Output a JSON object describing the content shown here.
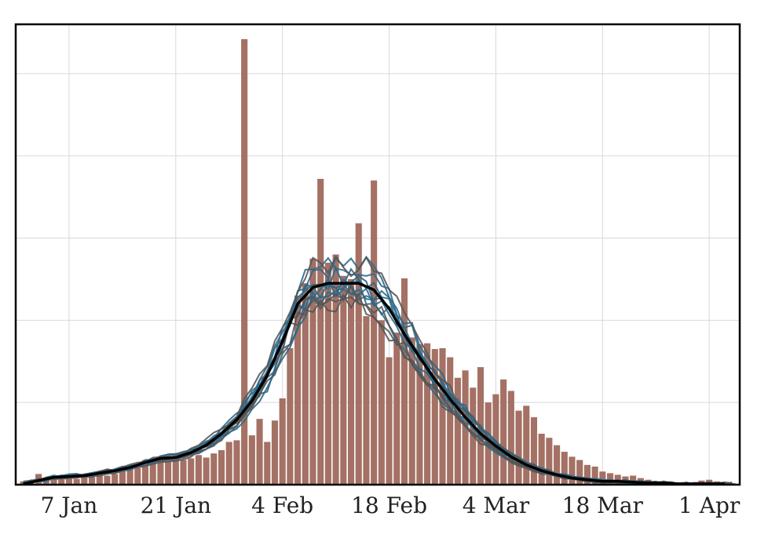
{
  "chart_data": {
    "type": "bar",
    "title": "",
    "xlabel": "",
    "ylabel": "",
    "x_ticks": [
      {
        "label": "7 Jan",
        "day": 7
      },
      {
        "label": "21 Jan",
        "day": 21
      },
      {
        "label": "4 Feb",
        "day": 35
      },
      {
        "label": "18 Feb",
        "day": 49
      },
      {
        "label": "4 Mar",
        "day": 63
      },
      {
        "label": "18 Mar",
        "day": 77
      },
      {
        "label": "1 Apr",
        "day": 91
      }
    ],
    "xlim": [
      0,
      95
    ],
    "ylim": [
      0,
      5.6
    ],
    "y_gridlines": [
      1,
      2,
      3,
      4,
      5
    ],
    "grid": true,
    "series": [
      {
        "name": "",
        "kind": "bar",
        "color": "#a47164",
        "x": [
          1,
          2,
          3,
          4,
          5,
          6,
          7,
          8,
          9,
          10,
          11,
          12,
          13,
          14,
          15,
          16,
          17,
          18,
          19,
          20,
          21,
          22,
          23,
          24,
          25,
          26,
          27,
          28,
          29,
          30,
          31,
          32,
          33,
          34,
          35,
          36,
          37,
          38,
          39,
          40,
          41,
          42,
          43,
          44,
          45,
          46,
          47,
          48,
          49,
          50,
          51,
          52,
          53,
          54,
          55,
          56,
          57,
          58,
          59,
          60,
          61,
          62,
          63,
          64,
          65,
          66,
          67,
          68,
          69,
          70,
          71,
          72,
          73,
          74,
          75,
          76,
          77,
          78,
          79,
          80,
          81,
          82,
          83,
          84,
          85,
          86,
          87,
          88,
          89,
          90,
          91,
          92,
          93,
          94
        ],
        "values": [
          0.04,
          0.05,
          0.13,
          0.07,
          0.08,
          0.06,
          0.09,
          0.07,
          0.1,
          0.12,
          0.15,
          0.11,
          0.13,
          0.17,
          0.22,
          0.2,
          0.3,
          0.27,
          0.34,
          0.29,
          0.35,
          0.3,
          0.32,
          0.36,
          0.33,
          0.38,
          0.42,
          0.52,
          0.54,
          0.69,
          0.6,
          0.8,
          0.52,
          0.78,
          1.05,
          1.66,
          2.3,
          2.45,
          2.75,
          2.79,
          2.7,
          2.8,
          2.54,
          2.5,
          2.3,
          1.89,
          2.41,
          2.3,
          1.87,
          2.2,
          2.51,
          1.79,
          1.71,
          1.73,
          1.48,
          1.66,
          1.55,
          1.3,
          1.39,
          1.14,
          1.43,
          1.2,
          1.1,
          1.28,
          1.14,
          0.9,
          0.96,
          0.82,
          0.62,
          0.57,
          0.48,
          0.4,
          0.34,
          0.3,
          0.24,
          0.22,
          0.16,
          0.14,
          0.12,
          0.1,
          0.11,
          0.08,
          0.06,
          0.04,
          0.03,
          0.02,
          0.01,
          0.01,
          0.02,
          0.05,
          0.06,
          0.04,
          0.03,
          0.02
        ],
        "overrides": [
          [
            30,
            5.42
          ],
          [
            40,
            3.72
          ],
          [
            45,
            3.18
          ],
          [
            46,
            2.05
          ],
          [
            47,
            3.7
          ],
          [
            48,
            2.0
          ],
          [
            49,
            1.55
          ],
          [
            50,
            1.85
          ],
          [
            54,
            1.72
          ],
          [
            55,
            1.65
          ],
          [
            60,
            1.18
          ],
          [
            62,
            1.0
          ]
        ]
      },
      {
        "name": "",
        "kind": "line",
        "color": "#000000",
        "x": [
          1,
          3,
          5,
          7,
          9,
          11,
          13,
          15,
          17,
          19,
          21,
          23,
          25,
          27,
          29,
          31,
          33,
          35,
          37,
          39,
          41,
          43,
          45,
          47,
          49,
          51,
          53,
          55,
          57,
          59,
          61,
          63,
          65,
          67,
          69,
          71,
          73,
          75,
          77,
          79,
          81,
          83,
          85,
          87,
          89,
          91,
          93
        ],
        "values": [
          0.01,
          0.05,
          0.09,
          0.1,
          0.11,
          0.14,
          0.17,
          0.21,
          0.27,
          0.32,
          0.33,
          0.39,
          0.48,
          0.62,
          0.79,
          1.02,
          1.33,
          1.74,
          2.2,
          2.4,
          2.45,
          2.45,
          2.45,
          2.37,
          2.14,
          1.83,
          1.55,
          1.28,
          1.04,
          0.82,
          0.62,
          0.47,
          0.34,
          0.24,
          0.17,
          0.12,
          0.08,
          0.06,
          0.04,
          0.04,
          0.03,
          0.02,
          0.02,
          0.01,
          0.01,
          0.01,
          0.01
        ]
      }
    ],
    "ensemble_colors": [
      "#2b6888",
      "#555555"
    ]
  }
}
